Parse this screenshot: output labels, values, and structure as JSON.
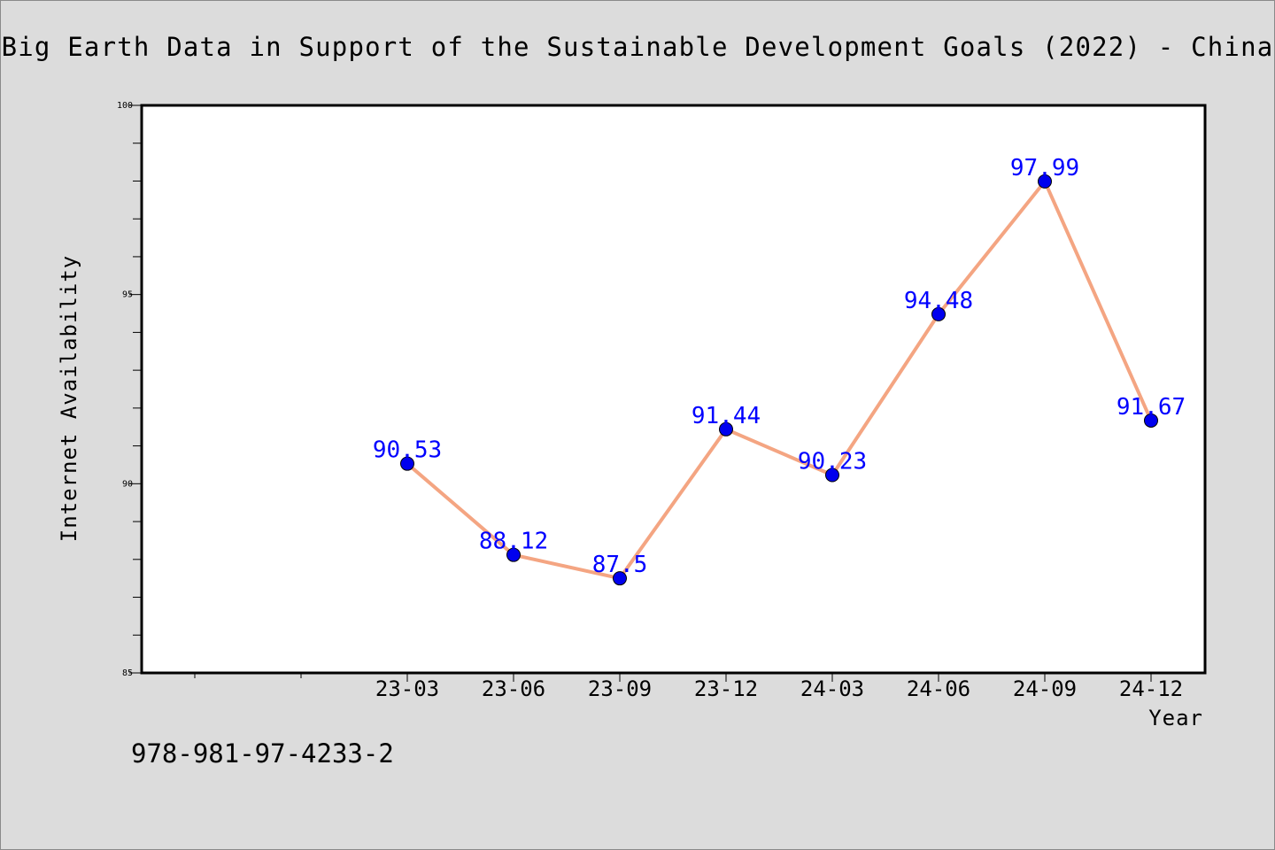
{
  "header": {
    "title": "Big Earth Data in Support of the Sustainable Development Goals (2022) - China"
  },
  "footer": {
    "isbn": "978-981-97-4233-2"
  },
  "chart_data": {
    "type": "line",
    "title": "Big Earth Data in Support of the Sustainable Development Goals (2022) - China",
    "xlabel": "Year",
    "ylabel": "Internet Availability",
    "categories": [
      "23-03",
      "23-06",
      "23-09",
      "23-12",
      "24-03",
      "24-06",
      "24-09",
      "24-12"
    ],
    "values": [
      90.53,
      88.12,
      87.5,
      91.44,
      90.23,
      94.48,
      97.99,
      91.67
    ],
    "data_labels": [
      "90.53",
      "88.12",
      "87.5",
      "91.44",
      "90.23",
      "94.48",
      "97.99",
      "91.67"
    ],
    "ylim": [
      85,
      100
    ],
    "y_ticks": [
      85,
      90,
      95,
      100
    ],
    "y_tick_labels": [
      "85",
      "90",
      "95",
      "100"
    ],
    "grid": false,
    "legend": "none",
    "colors": {
      "line": "#f4a582",
      "marker": "#0000ee",
      "label": "#0000ff",
      "plot_bg": "#ffffff",
      "page_bg": "#dcdcdc"
    }
  }
}
